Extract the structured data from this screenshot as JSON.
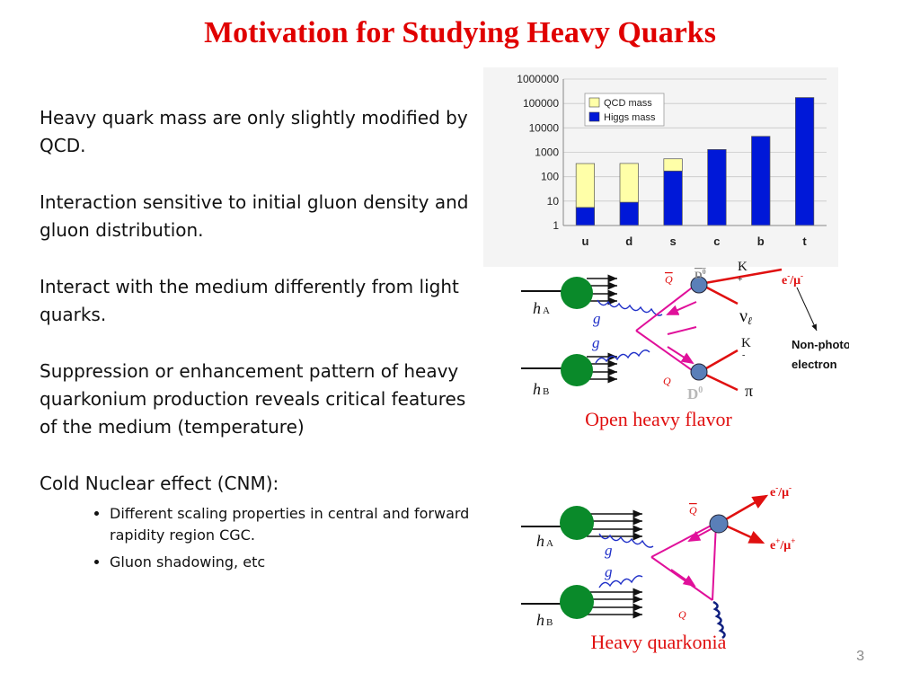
{
  "slide": {
    "title": "Motivation for Studying Heavy Quarks",
    "page_number": "3"
  },
  "bullets": [
    "Heavy quark mass are only slightly modified by QCD.",
    "Interaction sensitive to initial gluon density and gluon distribution.",
    "Interact with the medium differently from light quarks.",
    "Suppression or enhancement pattern of heavy quarkonium production reveals critical features of the medium (temperature)",
    "Cold Nuclear effect (CNM):"
  ],
  "sub_bullets": [
    "Different scaling properties in central and forward rapidity region CGC.",
    "Gluon shadowing, etc"
  ],
  "chart_data": {
    "type": "bar",
    "stacked": true,
    "y_scale": "log",
    "ylim": [
      1,
      1000000
    ],
    "y_ticks": [
      "1",
      "10",
      "100",
      "1000",
      "10000",
      "100000",
      "1000000"
    ],
    "categories": [
      "u",
      "d",
      "s",
      "c",
      "b",
      "t"
    ],
    "series": [
      {
        "name": "Higgs mass",
        "values": [
          4.5,
          8,
          170,
          1300,
          4500,
          175000
        ],
        "color": "#0018d8"
      },
      {
        "name": "QCD mass",
        "values": [
          340,
          340,
          370,
          0,
          0,
          0
        ],
        "color": "#ffffa8"
      }
    ],
    "legend_position": "top-left",
    "grid": true
  },
  "open_flavor": {
    "caption": "Open heavy flavor",
    "hA": "h",
    "hA_sub": "A",
    "hB": "h",
    "hB_sub": "B",
    "g1": "g",
    "g2": "g",
    "Qbar": "Q",
    "Q": "Q",
    "D0bar": "D",
    "D0bar_sup": "0",
    "D0": "D",
    "D0_sup": "0",
    "Kplus": "K",
    "Kplus_sup": "+",
    "Kminus": "K",
    "Kminus_sup": "-",
    "nu": "ν",
    "nu_sub": "ℓ",
    "pi": "π",
    "lepton": "e",
    "lepton_sup1": "-",
    "lepton_mid": "/μ",
    "lepton_sup2": "-",
    "non_photonic_1": "Non-photonic",
    "non_photonic_2": "electron"
  },
  "quarkonia": {
    "caption": "Heavy quarkonia",
    "hA": "h",
    "hA_sub": "A",
    "hB": "h",
    "hB_sub": "B",
    "g1": "g",
    "g2": "g",
    "Qbar": "Q",
    "Q": "Q",
    "lep_minus": "e",
    "lep_minus_sup": "-",
    "lep_minus_mid": "/μ",
    "lep_minus_sup2": "-",
    "lep_plus": "e",
    "lep_plus_sup": "+",
    "lep_plus_mid": "/μ",
    "lep_plus_sup2": "+"
  }
}
